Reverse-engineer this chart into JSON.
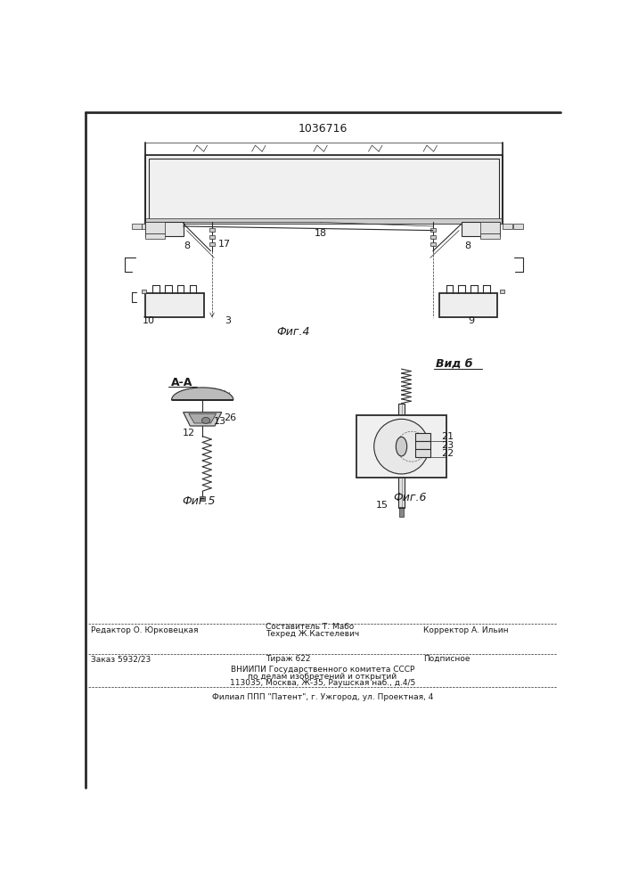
{
  "title": "1036716",
  "bg_color": "#ffffff",
  "fig4_label": "Фиг.4",
  "fig5_label": "Фиг.5",
  "fig6_label": "Фиг.6",
  "vidb_label": "Вид б",
  "aa_label": "А-А",
  "line_color": "#2a2a2a",
  "label_color": "#1a1a1a"
}
